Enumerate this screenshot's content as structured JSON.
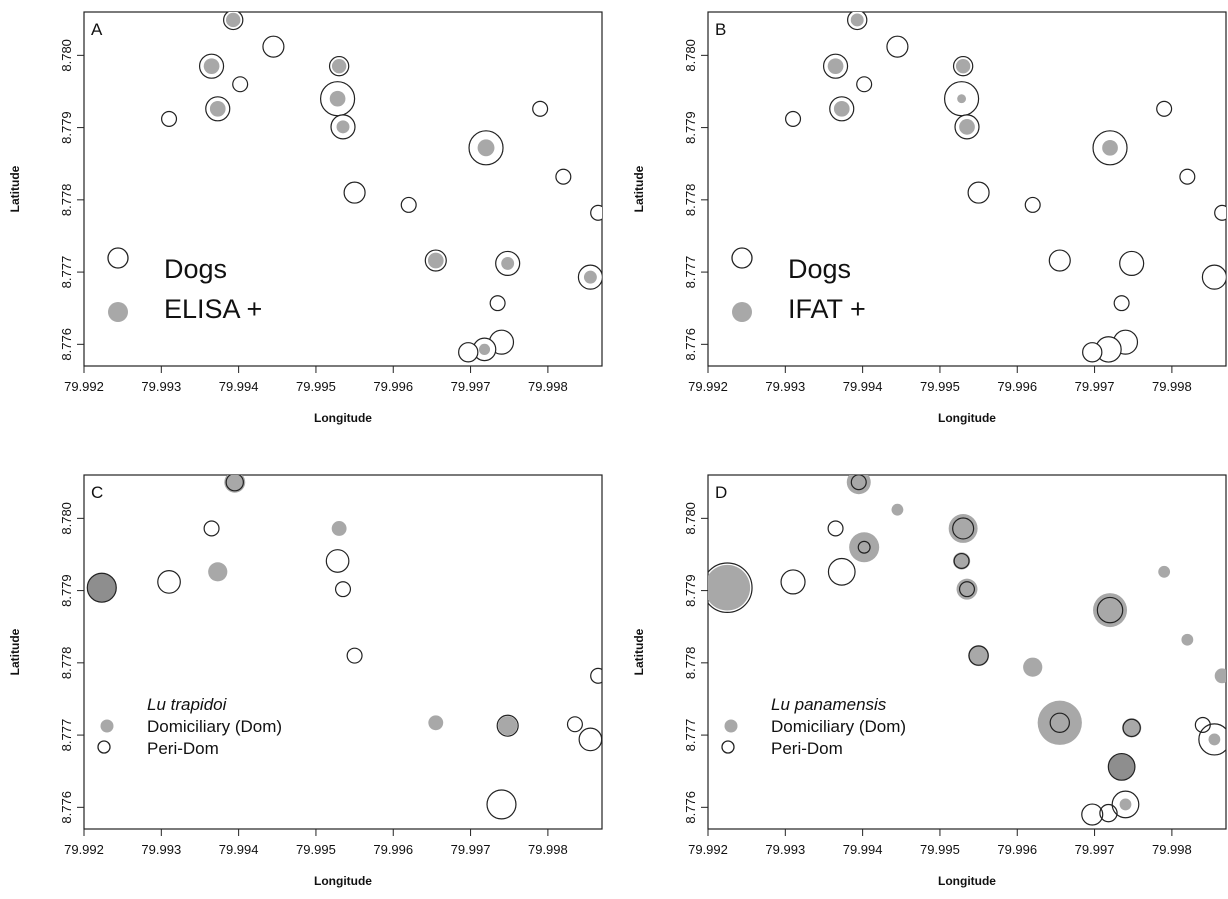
{
  "chart_data": [
    {
      "type": "scatter",
      "panel_label": "A",
      "xlabel": "Longitude",
      "ylabel": "Latitude",
      "xlim": [
        79.992,
        79.9987
      ],
      "ylim": [
        8.7757,
        8.7806
      ],
      "xticks": [
        "79.992",
        "79.993",
        "79.994",
        "79.995",
        "79.996",
        "79.997",
        "79.998"
      ],
      "yticks": [
        "8.776",
        "8.777",
        "8.778",
        "8.779",
        "8.780"
      ],
      "grid": false,
      "legend_position": "bottom-left",
      "legend": [
        {
          "symbol": "open-circle",
          "label": "Dogs"
        },
        {
          "symbol": "filled-grey",
          "label": "ELISA +"
        }
      ],
      "points": [
        {
          "x": 79.99393,
          "y": 8.78049,
          "size": 4,
          "positive": 4
        },
        {
          "x": 79.99445,
          "y": 8.78012,
          "size": 5,
          "positive": 0
        },
        {
          "x": 79.99365,
          "y": 8.77985,
          "size": 7,
          "positive": 5
        },
        {
          "x": 79.9953,
          "y": 8.77985,
          "size": 4,
          "positive": 4
        },
        {
          "x": 79.99402,
          "y": 8.7796,
          "size": 2,
          "positive": 0
        },
        {
          "x": 79.99528,
          "y": 8.7794,
          "size": 16,
          "positive": 5
        },
        {
          "x": 79.9931,
          "y": 8.77912,
          "size": 2,
          "positive": 0
        },
        {
          "x": 79.99373,
          "y": 8.77926,
          "size": 7,
          "positive": 5
        },
        {
          "x": 79.99535,
          "y": 8.77901,
          "size": 7,
          "positive": 3
        },
        {
          "x": 79.9979,
          "y": 8.77926,
          "size": 2,
          "positive": 0
        },
        {
          "x": 79.9972,
          "y": 8.77872,
          "size": 16,
          "positive": 6
        },
        {
          "x": 79.9955,
          "y": 8.7781,
          "size": 5,
          "positive": 0
        },
        {
          "x": 79.9962,
          "y": 8.77793,
          "size": 2,
          "positive": 0
        },
        {
          "x": 79.9982,
          "y": 8.77832,
          "size": 2,
          "positive": 0
        },
        {
          "x": 79.99865,
          "y": 8.77782,
          "size": 2,
          "positive": 0
        },
        {
          "x": 79.99655,
          "y": 8.77716,
          "size": 5,
          "positive": 5
        },
        {
          "x": 79.99748,
          "y": 8.77712,
          "size": 7,
          "positive": 3
        },
        {
          "x": 79.99855,
          "y": 8.77693,
          "size": 7,
          "positive": 3
        },
        {
          "x": 79.99735,
          "y": 8.77657,
          "size": 2,
          "positive": 0
        },
        {
          "x": 79.9974,
          "y": 8.77603,
          "size": 7,
          "positive": 0
        },
        {
          "x": 79.99718,
          "y": 8.77593,
          "size": 6,
          "positive": 2
        },
        {
          "x": 79.99697,
          "y": 8.77589,
          "size": 4,
          "positive": 0
        }
      ]
    },
    {
      "type": "scatter",
      "panel_label": "B",
      "xlabel": "Longitude",
      "ylabel": "Latitude",
      "xlim": [
        79.992,
        79.9987
      ],
      "ylim": [
        8.7757,
        8.7806
      ],
      "xticks": [
        "79.992",
        "79.993",
        "79.994",
        "79.995",
        "79.996",
        "79.997",
        "79.998"
      ],
      "yticks": [
        "8.776",
        "8.777",
        "8.778",
        "8.779",
        "8.780"
      ],
      "grid": false,
      "legend_position": "bottom-left",
      "legend": [
        {
          "symbol": "open-circle",
          "label": "Dogs"
        },
        {
          "symbol": "filled-grey",
          "label": "IFAT +"
        }
      ],
      "points": [
        {
          "x": 79.99393,
          "y": 8.78049,
          "size": 4,
          "positive": 3
        },
        {
          "x": 79.99445,
          "y": 8.78012,
          "size": 5,
          "positive": 0
        },
        {
          "x": 79.99365,
          "y": 8.77985,
          "size": 7,
          "positive": 5
        },
        {
          "x": 79.9953,
          "y": 8.77985,
          "size": 4,
          "positive": 4
        },
        {
          "x": 79.99402,
          "y": 8.7796,
          "size": 2,
          "positive": 0
        },
        {
          "x": 79.99528,
          "y": 8.7794,
          "size": 16,
          "positive": 1
        },
        {
          "x": 79.9931,
          "y": 8.77912,
          "size": 2,
          "positive": 0
        },
        {
          "x": 79.99373,
          "y": 8.77926,
          "size": 7,
          "positive": 5
        },
        {
          "x": 79.99535,
          "y": 8.77901,
          "size": 7,
          "positive": 5
        },
        {
          "x": 79.9979,
          "y": 8.77926,
          "size": 2,
          "positive": 0
        },
        {
          "x": 79.9972,
          "y": 8.77872,
          "size": 16,
          "positive": 5
        },
        {
          "x": 79.9955,
          "y": 8.7781,
          "size": 5,
          "positive": 0
        },
        {
          "x": 79.9962,
          "y": 8.77793,
          "size": 2,
          "positive": 0
        },
        {
          "x": 79.9982,
          "y": 8.77832,
          "size": 2,
          "positive": 0
        },
        {
          "x": 79.99865,
          "y": 8.77782,
          "size": 2,
          "positive": 0
        },
        {
          "x": 79.99655,
          "y": 8.77716,
          "size": 5,
          "positive": 0
        },
        {
          "x": 79.99748,
          "y": 8.77712,
          "size": 7,
          "positive": 0
        },
        {
          "x": 79.99855,
          "y": 8.77693,
          "size": 7,
          "positive": 0
        },
        {
          "x": 79.99735,
          "y": 8.77657,
          "size": 2,
          "positive": 0
        },
        {
          "x": 79.9974,
          "y": 8.77603,
          "size": 7,
          "positive": 0
        },
        {
          "x": 79.99718,
          "y": 8.77593,
          "size": 8,
          "positive": 0
        },
        {
          "x": 79.99697,
          "y": 8.77589,
          "size": 4,
          "positive": 0
        }
      ]
    },
    {
      "type": "scatter",
      "panel_label": "C",
      "xlabel": "Longitude",
      "ylabel": "Latitude",
      "xlim": [
        79.992,
        79.9987
      ],
      "ylim": [
        8.7757,
        8.7806
      ],
      "xticks": [
        "79.992",
        "79.993",
        "79.994",
        "79.995",
        "79.996",
        "79.997",
        "79.998"
      ],
      "yticks": [
        "8.776",
        "8.777",
        "8.778",
        "8.779",
        "8.780"
      ],
      "grid": false,
      "legend_position": "bottom-left",
      "legend": [
        {
          "symbol": "title",
          "label": "Lu trapidoi"
        },
        {
          "symbol": "filled-grey",
          "label": "Domiciliary (Dom)"
        },
        {
          "symbol": "open-circle",
          "label": "Peri-Dom"
        }
      ],
      "points": [
        {
          "x": 79.99223,
          "y": 8.77904,
          "dom": 11,
          "peri": 11,
          "dark": true
        },
        {
          "x": 79.99395,
          "y": 8.7805,
          "dom": 5,
          "peri": 3
        },
        {
          "x": 79.9931,
          "y": 8.77912,
          "dom": 0,
          "peri": 6
        },
        {
          "x": 79.99365,
          "y": 8.77986,
          "dom": 0,
          "peri": 2
        },
        {
          "x": 79.99373,
          "y": 8.77926,
          "dom": 4,
          "peri": 0
        },
        {
          "x": 79.9953,
          "y": 8.77986,
          "dom": 2,
          "peri": 0
        },
        {
          "x": 79.99528,
          "y": 8.77941,
          "dom": 0,
          "peri": 6
        },
        {
          "x": 79.99535,
          "y": 8.77902,
          "dom": 0,
          "peri": 2
        },
        {
          "x": 79.9955,
          "y": 8.7781,
          "dom": 0,
          "peri": 2
        },
        {
          "x": 79.99655,
          "y": 8.77717,
          "dom": 2,
          "peri": 0
        },
        {
          "x": 79.99748,
          "y": 8.77713,
          "dom": 4,
          "peri": 5
        },
        {
          "x": 79.99835,
          "y": 8.77715,
          "dom": 0,
          "peri": 2
        },
        {
          "x": 79.99855,
          "y": 8.77694,
          "dom": 0,
          "peri": 6
        },
        {
          "x": 79.99865,
          "y": 8.77782,
          "dom": 0,
          "peri": 2
        },
        {
          "x": 79.9974,
          "y": 8.77604,
          "dom": 0,
          "peri": 11
        }
      ]
    },
    {
      "type": "scatter",
      "panel_label": "D",
      "xlabel": "Longitude",
      "ylabel": "Latitude",
      "xlim": [
        79.992,
        79.9987
      ],
      "ylim": [
        8.7757,
        8.7806
      ],
      "xticks": [
        "79.992",
        "79.993",
        "79.994",
        "79.995",
        "79.996",
        "79.997",
        "79.998"
      ],
      "yticks": [
        "8.776",
        "8.777",
        "8.778",
        "8.779",
        "8.780"
      ],
      "grid": false,
      "legend_position": "bottom-left",
      "legend": [
        {
          "symbol": "title",
          "label": "Lu panamensis"
        },
        {
          "symbol": "filled-grey",
          "label": "Domiciliary (Dom)"
        },
        {
          "symbol": "open-circle",
          "label": "Peri-Dom"
        }
      ],
      "points": [
        {
          "x": 79.99225,
          "y": 8.77904,
          "dom": 31,
          "peri": 37
        },
        {
          "x": 79.99395,
          "y": 8.7805,
          "dom": 7,
          "peri": 2
        },
        {
          "x": 79.99445,
          "y": 8.78012,
          "dom": 1,
          "peri": 0
        },
        {
          "x": 79.99365,
          "y": 8.77986,
          "dom": 0,
          "peri": 2
        },
        {
          "x": 79.99402,
          "y": 8.7796,
          "dom": 12,
          "peri": 1
        },
        {
          "x": 79.9931,
          "y": 8.77912,
          "dom": 0,
          "peri": 7
        },
        {
          "x": 79.99373,
          "y": 8.77926,
          "dom": 0,
          "peri": 9
        },
        {
          "x": 79.9953,
          "y": 8.77986,
          "dom": 11,
          "peri": 5
        },
        {
          "x": 79.99528,
          "y": 8.77941,
          "dom": 3,
          "peri": 2
        },
        {
          "x": 79.99535,
          "y": 8.77902,
          "dom": 5,
          "peri": 2
        },
        {
          "x": 79.9955,
          "y": 8.7781,
          "dom": 5,
          "peri": 4
        },
        {
          "x": 79.9962,
          "y": 8.77794,
          "dom": 4,
          "peri": 0
        },
        {
          "x": 79.9972,
          "y": 8.77873,
          "dom": 16,
          "peri": 8
        },
        {
          "x": 79.9979,
          "y": 8.77926,
          "dom": 1,
          "peri": 0
        },
        {
          "x": 79.9982,
          "y": 8.77832,
          "dom": 1,
          "peri": 0
        },
        {
          "x": 79.99865,
          "y": 8.77782,
          "dom": 2,
          "peri": 0
        },
        {
          "x": 79.99655,
          "y": 8.77717,
          "dom": 29,
          "peri": 4
        },
        {
          "x": 79.99748,
          "y": 8.7771,
          "dom": 4,
          "peri": 3
        },
        {
          "x": 79.9984,
          "y": 8.77714,
          "dom": 0,
          "peri": 2
        },
        {
          "x": 79.99855,
          "y": 8.77694,
          "dom": 1,
          "peri": 13
        },
        {
          "x": 79.99735,
          "y": 8.77656,
          "dom": 9,
          "peri": 9,
          "dark": true
        },
        {
          "x": 79.9974,
          "y": 8.77604,
          "dom": 1,
          "peri": 9
        },
        {
          "x": 79.99718,
          "y": 8.77592,
          "dom": 0,
          "peri": 3
        },
        {
          "x": 79.99697,
          "y": 8.7759,
          "dom": 0,
          "peri": 5
        }
      ]
    }
  ],
  "colors": {
    "positive_fill": "#a8a8a8",
    "dark_fill": "#8e8e8e",
    "outline": "#222222",
    "background": "#ffffff"
  }
}
